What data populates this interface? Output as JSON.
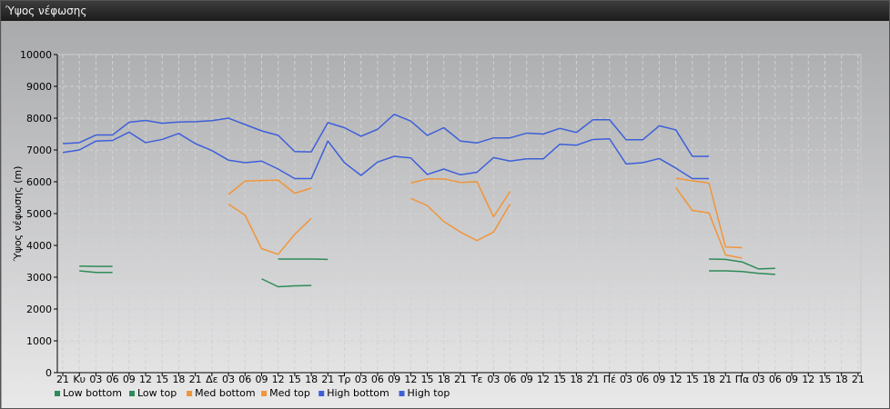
{
  "window": {
    "title": "Ύψος νέφωσης"
  },
  "chart_data": {
    "type": "line",
    "ylabel": "Ύψος νέφωσης (m)",
    "ylim": [
      0,
      10000
    ],
    "yticks": [
      0,
      1000,
      2000,
      3000,
      4000,
      5000,
      6000,
      7000,
      8000,
      9000,
      10000
    ],
    "grid": true,
    "legend_position": "bottom-left",
    "categories": [
      "21",
      "Κυ",
      "03",
      "06",
      "09",
      "12",
      "15",
      "18",
      "21",
      "Δε",
      "03",
      "06",
      "09",
      "12",
      "15",
      "18",
      "21",
      "Τρ",
      "03",
      "06",
      "09",
      "12",
      "15",
      "18",
      "21",
      "Τε",
      "03",
      "06",
      "09",
      "12",
      "15",
      "18",
      "21",
      "Πέ",
      "03",
      "06",
      "09",
      "12",
      "15",
      "18",
      "21",
      "Πα",
      "03",
      "06",
      "09",
      "12",
      "15",
      "18",
      "21"
    ],
    "series": [
      {
        "name": "Low bottom",
        "color": "#2e8b57",
        "values": [
          null,
          3200,
          3150,
          3150,
          null,
          null,
          null,
          null,
          null,
          null,
          null,
          null,
          2950,
          2700,
          2730,
          2740,
          null,
          null,
          null,
          null,
          null,
          null,
          null,
          null,
          null,
          null,
          null,
          null,
          null,
          null,
          null,
          null,
          null,
          null,
          null,
          null,
          null,
          null,
          null,
          3200,
          3200,
          3180,
          3120,
          3090,
          null,
          null,
          null,
          null,
          null
        ]
      },
      {
        "name": "Low top",
        "color": "#2e8b57",
        "values": [
          null,
          3350,
          3340,
          3340,
          null,
          null,
          null,
          null,
          null,
          null,
          null,
          null,
          null,
          3570,
          3570,
          3570,
          3560,
          null,
          null,
          null,
          null,
          null,
          null,
          null,
          null,
          null,
          null,
          null,
          null,
          null,
          null,
          null,
          null,
          null,
          null,
          null,
          null,
          null,
          null,
          3570,
          3560,
          3480,
          3260,
          3280,
          null,
          null,
          null,
          null,
          null
        ]
      },
      {
        "name": "Med bottom",
        "color": "#f0953a",
        "values": [
          null,
          null,
          null,
          null,
          null,
          null,
          null,
          null,
          null,
          null,
          5300,
          4950,
          3900,
          3720,
          4350,
          4850,
          null,
          null,
          null,
          null,
          null,
          5480,
          5250,
          4750,
          4420,
          4150,
          4420,
          5300,
          null,
          null,
          null,
          null,
          null,
          null,
          null,
          null,
          null,
          5820,
          5100,
          5020,
          3700,
          3600,
          null,
          null,
          null,
          null,
          null,
          null,
          null
        ]
      },
      {
        "name": "Med top",
        "color": "#f0953a",
        "values": [
          null,
          null,
          null,
          null,
          null,
          null,
          null,
          null,
          null,
          null,
          5600,
          6020,
          6040,
          6050,
          5640,
          5800,
          null,
          null,
          null,
          null,
          null,
          5960,
          6090,
          6090,
          5980,
          6000,
          4900,
          5700,
          null,
          null,
          null,
          null,
          null,
          null,
          null,
          null,
          null,
          6110,
          6030,
          5960,
          3950,
          3930,
          null,
          null,
          null,
          null,
          null,
          null,
          null
        ]
      },
      {
        "name": "High bottom",
        "color": "#3d5fd9",
        "values": [
          6920,
          7000,
          7280,
          7300,
          7560,
          7230,
          7330,
          7520,
          7200,
          6980,
          6680,
          6600,
          6650,
          6400,
          6100,
          6100,
          7280,
          6600,
          6200,
          6620,
          6800,
          6750,
          6230,
          6400,
          6220,
          6300,
          6760,
          6650,
          6720,
          6720,
          7180,
          7150,
          7330,
          7350,
          6560,
          6600,
          6730,
          6430,
          6100,
          6100,
          null,
          null,
          null,
          null,
          null,
          null,
          null,
          null,
          null
        ]
      },
      {
        "name": "High top",
        "color": "#3d5fd9",
        "values": [
          7200,
          7230,
          7470,
          7470,
          7870,
          7930,
          7840,
          7880,
          7890,
          7920,
          8000,
          7800,
          7600,
          7460,
          6950,
          6940,
          7860,
          7700,
          7430,
          7650,
          8120,
          7910,
          7460,
          7700,
          7280,
          7220,
          7380,
          7380,
          7530,
          7500,
          7680,
          7550,
          7950,
          7950,
          7320,
          7320,
          7760,
          7630,
          6800,
          6800,
          null,
          null,
          null,
          null,
          null,
          null,
          null,
          null,
          null
        ]
      }
    ]
  }
}
